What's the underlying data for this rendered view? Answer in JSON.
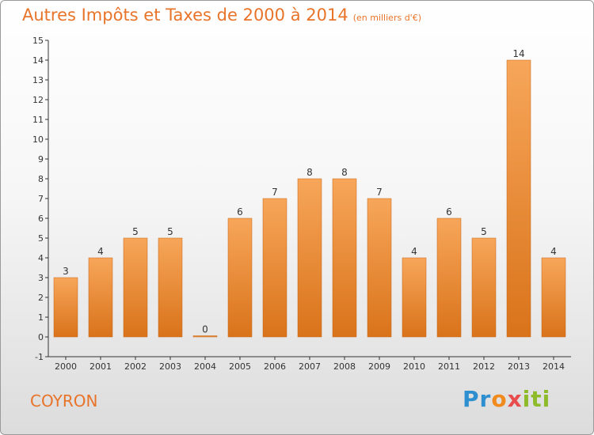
{
  "title": "Autres Impôts et Taxes de 2000 à 2014",
  "unit": "(en milliers d'€)",
  "commune": "COYRON",
  "brand": "Proxiti",
  "colors": {
    "accent": "#e8742a",
    "bar_top": "#f7a65a",
    "bar_bottom": "#d9731a"
  },
  "chart_data": {
    "type": "bar",
    "title": "Autres Impôts et Taxes de 2000 à 2014",
    "xlabel": "",
    "ylabel": "",
    "categories": [
      "2000",
      "2001",
      "2002",
      "2003",
      "2004",
      "2005",
      "2006",
      "2007",
      "2008",
      "2009",
      "2010",
      "2011",
      "2012",
      "2013",
      "2014"
    ],
    "values": [
      3,
      4,
      5,
      5,
      0,
      6,
      7,
      8,
      8,
      7,
      4,
      6,
      5,
      14,
      4
    ],
    "ylim": [
      -1,
      15
    ],
    "yticks": [
      -1,
      0,
      1,
      2,
      3,
      4,
      5,
      6,
      7,
      8,
      9,
      10,
      11,
      12,
      13,
      14,
      15
    ],
    "grid": false
  }
}
